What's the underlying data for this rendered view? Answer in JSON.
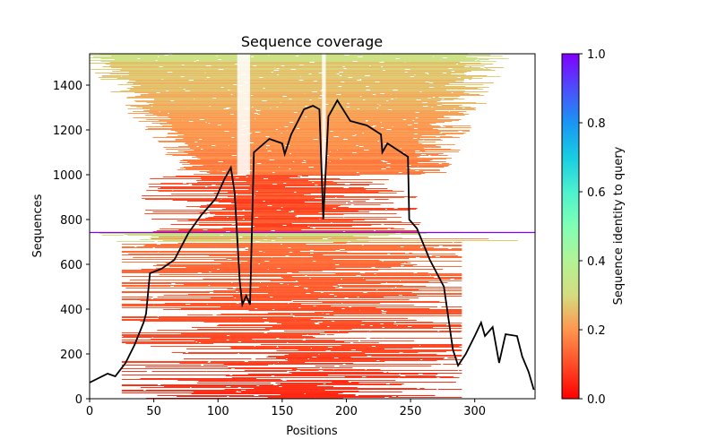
{
  "chart_data": {
    "type": "heatmap",
    "title": "Sequence coverage",
    "xlabel": "Positions",
    "ylabel": "Sequences",
    "xlim": [
      0,
      347
    ],
    "ylim": [
      0,
      1540
    ],
    "xticks": [
      0,
      50,
      100,
      150,
      200,
      250,
      300
    ],
    "yticks": [
      0,
      200,
      400,
      600,
      800,
      1000,
      1200,
      1400
    ],
    "query_row": 742,
    "colorbar": {
      "label": "Sequence identity to query",
      "colormap": "rainbow_r",
      "range": [
        0.0,
        1.0
      ],
      "ticks": [
        "0.0",
        "0.2",
        "0.4",
        "0.6",
        "0.8",
        "1.0"
      ]
    },
    "coverage_line": {
      "name": "coverage",
      "color": "#000000",
      "x": [
        0,
        14,
        20,
        28,
        35,
        42,
        44,
        47,
        56,
        66,
        77,
        87,
        98,
        105,
        110,
        113,
        117,
        119,
        122,
        125,
        128,
        140,
        150,
        152,
        157,
        167,
        174,
        179,
        182,
        186,
        193,
        203,
        216,
        227,
        228,
        232,
        248,
        249,
        255,
        265,
        276,
        283,
        287,
        293,
        300,
        305,
        308,
        314,
        319,
        324,
        333,
        337,
        342,
        346
      ],
      "y": [
        72,
        112,
        100,
        160,
        240,
        340,
        380,
        560,
        580,
        620,
        740,
        820,
        892,
        980,
        1032,
        920,
        520,
        420,
        460,
        420,
        1100,
        1160,
        1140,
        1092,
        1180,
        1292,
        1308,
        1292,
        800,
        1260,
        1332,
        1240,
        1220,
        1180,
        1100,
        1140,
        1080,
        800,
        760,
        620,
        500,
        220,
        148,
        200,
        280,
        340,
        280,
        320,
        160,
        288,
        280,
        188,
        120,
        40
      ]
    },
    "alignment_bands": [
      {
        "rows": [
          0,
          740
        ],
        "identity_range": [
          0.05,
          0.15
        ],
        "span": [
          40,
          290
        ]
      },
      {
        "rows": [
          700,
          745
        ],
        "identity_range": [
          0.2,
          0.4
        ],
        "span": [
          0,
          347
        ]
      },
      {
        "rows": [
          745,
          1000
        ],
        "identity_range": [
          0.08,
          0.14
        ],
        "span": [
          40,
          260
        ]
      },
      {
        "rows": [
          1000,
          1540
        ],
        "identity_range": [
          0.15,
          0.3
        ],
        "span": [
          0,
          330
        ]
      }
    ]
  }
}
